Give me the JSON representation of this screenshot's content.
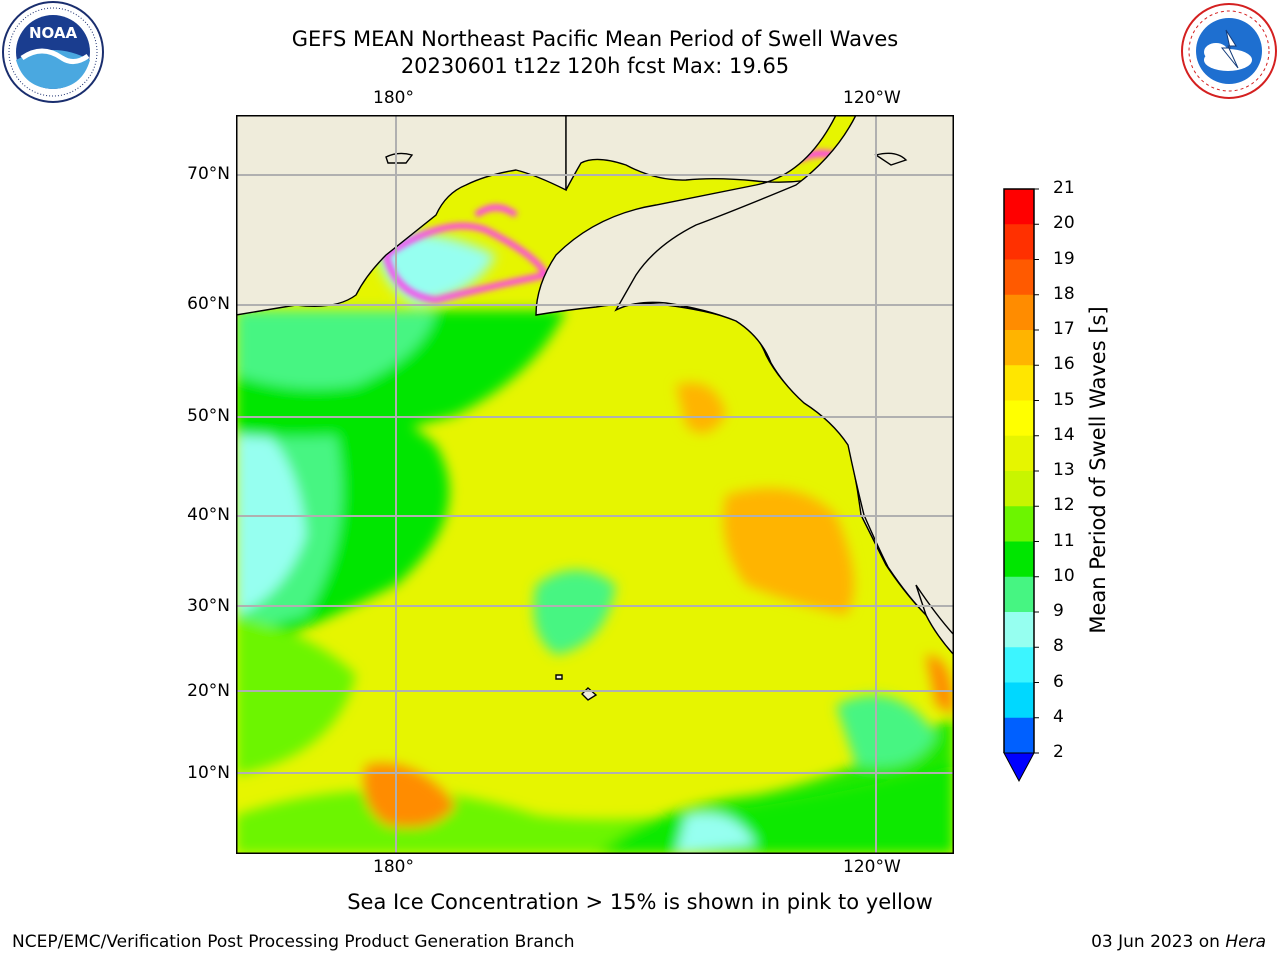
{
  "header": {
    "title_line1": "GEFS MEAN Northeast Pacific Mean Period of Swell Waves",
    "title_line2": "20230601 t12z 120h fcst   Max: 19.65"
  },
  "logos": {
    "left": {
      "text": "NOAA",
      "ring_text": "NATIONAL OCEANIC AND ATMOSPHERIC ADMINISTRATION • U.S. DEPARTMENT OF COMMERCE"
    },
    "right": {
      "ring_text": "NATIONAL WEATHER SERVICE"
    }
  },
  "map": {
    "lon_labels_top": [
      "180°",
      "120°W"
    ],
    "lon_labels_bottom": [
      "180°",
      "120°W"
    ],
    "lat_labels": [
      "70°N",
      "60°N",
      "50°N",
      "40°N",
      "30°N",
      "20°N",
      "10°N"
    ],
    "land_color": "#efecdb",
    "ocean_base_color": "#e6f500",
    "grid_color": "#b0b0b0",
    "sea_ice_color": "#ff3cf0"
  },
  "colorbar": {
    "title": "Mean Period of Swell Waves [s]",
    "ticks": [
      "2",
      "4",
      "6",
      "8",
      "9",
      "10",
      "11",
      "12",
      "13",
      "14",
      "15",
      "16",
      "17",
      "18",
      "19",
      "20",
      "21"
    ],
    "colors": [
      "#0060ff",
      "#00d8ff",
      "#3cf5ff",
      "#96fff0",
      "#46f582",
      "#00e600",
      "#6cf500",
      "#c8f500",
      "#e6f500",
      "#ffff00",
      "#ffe600",
      "#ffb400",
      "#ff8c00",
      "#ff5a00",
      "#ff3000",
      "#ff0000"
    ],
    "under_color": "#0000ff"
  },
  "footer": {
    "note": "Sea Ice Concentration > 15% is shown in pink to yellow",
    "left": "NCEP/EMC/Verification Post Processing Product Generation Branch",
    "right_date": "03 Jun 2023 on",
    "right_host": "Hera"
  }
}
